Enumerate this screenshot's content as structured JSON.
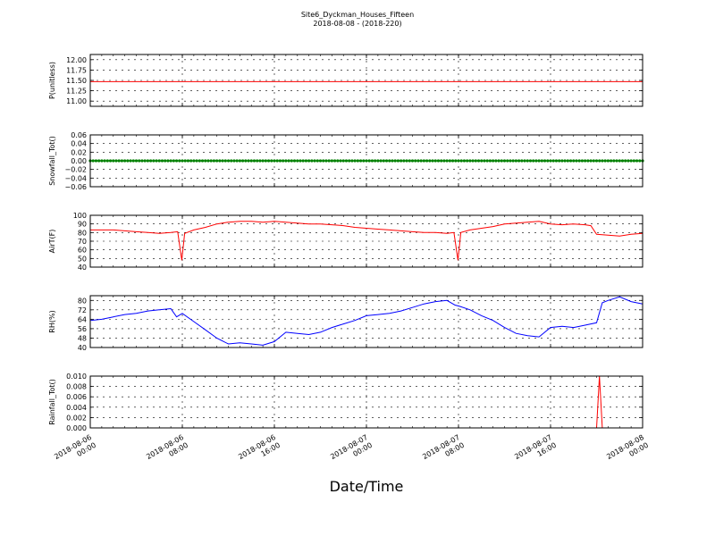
{
  "title": "Site6_Dyckman_Houses_Fifteen",
  "subtitle": "2018-08-08 - (2018-220)",
  "xlabel": "Date/Time",
  "x_tick_labels": [
    [
      "2018-08-06",
      "00:00"
    ],
    [
      "2018-08-06",
      "08:00"
    ],
    [
      "2018-08-06",
      "16:00"
    ],
    [
      "2018-08-07",
      "00:00"
    ],
    [
      "2018-08-07",
      "08:00"
    ],
    [
      "2018-08-07",
      "16:00"
    ],
    [
      "2018-08-08",
      "00:00"
    ]
  ],
  "chart_data": [
    {
      "type": "line",
      "ylabel": "P(unitless)",
      "ylim": [
        10.875,
        12.125
      ],
      "yticks": [
        11.0,
        11.25,
        11.5,
        11.75,
        12.0
      ],
      "ytick_labels": [
        "11.00",
        "11.25",
        "11.50",
        "11.75",
        "12.00"
      ],
      "color": "#ff0000",
      "marker": "none",
      "x_hours": [
        0,
        48
      ],
      "values": [
        11.47,
        11.47
      ],
      "grid": true
    },
    {
      "type": "line",
      "ylabel": "Snowfall_Tot()",
      "ylim": [
        -0.06,
        0.06
      ],
      "yticks": [
        -0.06,
        -0.04,
        -0.02,
        0.0,
        0.02,
        0.04,
        0.06
      ],
      "ytick_labels": [
        "−0.06",
        "−0.04",
        "−0.02",
        "0.00",
        "0.02",
        "0.04",
        "0.06"
      ],
      "color": "#008000",
      "marker": "dot",
      "x_hours": [
        0,
        48
      ],
      "values": [
        0,
        0
      ],
      "grid": true
    },
    {
      "type": "line",
      "ylabel": "AirT(F)",
      "ylim": [
        40,
        100
      ],
      "yticks": [
        40,
        50,
        60,
        70,
        80,
        90,
        100
      ],
      "ytick_labels": [
        "40",
        "50",
        "60",
        "70",
        "80",
        "90",
        "100"
      ],
      "color": "#ff0000",
      "marker": "none",
      "x_hours": [
        0,
        1,
        2,
        3,
        4,
        5,
        6,
        7,
        7.6,
        7.95,
        8.2,
        9,
        10,
        11,
        12,
        13,
        14,
        15,
        16,
        17,
        18,
        19,
        20,
        21,
        22,
        23,
        24,
        25,
        26,
        27,
        28,
        29,
        30,
        31,
        31.6,
        31.95,
        32.2,
        33,
        34,
        35,
        36,
        37,
        38,
        39,
        40,
        41,
        42,
        43,
        43.5,
        44,
        45,
        46,
        47,
        48
      ],
      "values": [
        83,
        83,
        83,
        82,
        81,
        80,
        79,
        80,
        81,
        48,
        79,
        83,
        86,
        90,
        92,
        93,
        93,
        92,
        93,
        92,
        91,
        90,
        90,
        89,
        88,
        86,
        85,
        84,
        83,
        82,
        81,
        80,
        80,
        79,
        80,
        48,
        80,
        83,
        85,
        87,
        90,
        91,
        92,
        93,
        90,
        89,
        90,
        89,
        88,
        78,
        77,
        76,
        78,
        79
      ],
      "grid": true
    },
    {
      "type": "line",
      "ylabel": "RH(%)",
      "ylim": [
        40,
        84
      ],
      "yticks": [
        40,
        48,
        56,
        64,
        72,
        80
      ],
      "ytick_labels": [
        "40",
        "48",
        "56",
        "64",
        "72",
        "80"
      ],
      "color": "#0000ff",
      "marker": "none",
      "x_hours": [
        0,
        1,
        2,
        3,
        4,
        5,
        6,
        7,
        7.5,
        8,
        9,
        10,
        11,
        12,
        13,
        14,
        15,
        16,
        17,
        18,
        19,
        20,
        21,
        22,
        23,
        24,
        25,
        26,
        27,
        28,
        29,
        30,
        31,
        31.7,
        32.1,
        33,
        34,
        35,
        36,
        37,
        38,
        39,
        40,
        41,
        42,
        43,
        44,
        44.5,
        45,
        46,
        47,
        48
      ],
      "values": [
        63,
        64,
        66,
        68,
        69,
        71,
        72,
        73,
        66,
        69,
        62,
        55,
        48,
        43,
        44,
        43,
        42,
        45,
        53,
        52,
        51,
        53,
        57,
        60,
        63,
        67,
        68,
        69,
        71,
        74,
        77,
        79,
        80,
        76,
        75,
        72,
        67,
        63,
        57,
        52,
        50,
        49,
        57,
        58,
        57,
        59,
        61,
        78,
        80,
        83,
        79,
        77
      ],
      "grid": true
    },
    {
      "type": "line",
      "ylabel": "Rainfall_Tot()",
      "ylim": [
        0,
        0.01
      ],
      "yticks": [
        0.0,
        0.002,
        0.004,
        0.006,
        0.008,
        0.01
      ],
      "ytick_labels": [
        "0.000",
        "0.002",
        "0.004",
        "0.006",
        "0.008",
        "0.010"
      ],
      "color": "#ff0000",
      "marker": "none",
      "x_hours": [
        0,
        44,
        44.25,
        44.5,
        44.75,
        48
      ],
      "values": [
        0,
        0,
        0.01,
        0,
        0,
        0
      ],
      "grid": true
    }
  ]
}
